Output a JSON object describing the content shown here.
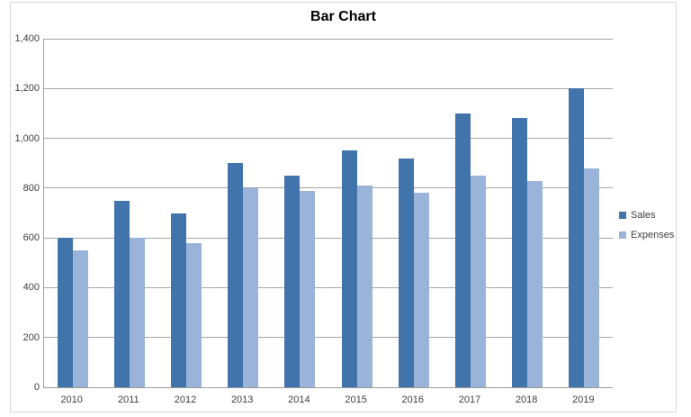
{
  "chart_data": {
    "type": "bar",
    "title": "Bar Chart",
    "categories": [
      "2010",
      "2011",
      "2012",
      "2013",
      "2014",
      "2015",
      "2016",
      "2017",
      "2018",
      "2019"
    ],
    "series": [
      {
        "name": "Sales",
        "color": "#4274AC",
        "values": [
          600,
          750,
          700,
          900,
          850,
          950,
          920,
          1100,
          1080,
          1200
        ]
      },
      {
        "name": "Expenses",
        "color": "#9AB3D8",
        "values": [
          550,
          600,
          580,
          800,
          790,
          810,
          780,
          850,
          830,
          880
        ]
      }
    ],
    "xlabel": "",
    "ylabel": "",
    "ylim": [
      0,
      1400
    ],
    "yticks": [
      {
        "label": "0",
        "value": 0
      },
      {
        "label": "200",
        "value": 200
      },
      {
        "label": "400",
        "value": 400
      },
      {
        "label": "600",
        "value": 600
      },
      {
        "label": "800",
        "value": 800
      },
      {
        "label": "1,000",
        "value": 1000
      },
      {
        "label": "1,200",
        "value": 1200
      },
      {
        "label": "1,400",
        "value": 1400
      }
    ],
    "grid": true,
    "legend_position": "right",
    "colors": {
      "gridline": "#a6a6a6",
      "axis_line": "#9a9a9a",
      "tick_text": "#3f3f3f",
      "frame_border": "#d6d6d6",
      "background": "#ffffff"
    }
  }
}
